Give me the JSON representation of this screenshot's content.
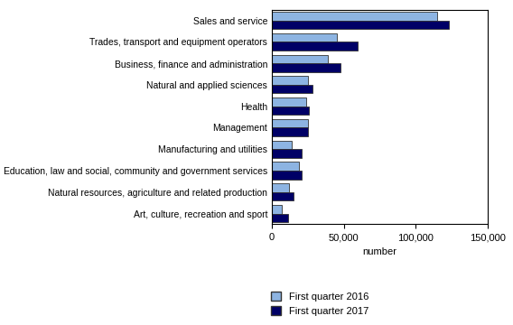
{
  "chart_data": {
    "type": "bar",
    "orientation": "horizontal",
    "categories": [
      "Sales and service",
      "Trades, transport and equipment operators",
      "Business, finance and administration",
      "Natural and applied sciences",
      "Health",
      "Management",
      "Manufacturing and utilities",
      "Education, law and social, community and government services",
      "Natural resources, agriculture and related production",
      "Art, culture, recreation and sport"
    ],
    "series": [
      {
        "name": "First quarter 2016",
        "color": "#8db4e2",
        "values": [
          115000,
          45000,
          39000,
          25000,
          24000,
          25000,
          14000,
          19000,
          12000,
          7000
        ]
      },
      {
        "name": "First quarter 2017",
        "color": "#000066",
        "values": [
          123000,
          60000,
          48000,
          28000,
          26000,
          25000,
          21000,
          21000,
          15000,
          11000
        ]
      }
    ],
    "x_label": "number",
    "xlim": [
      0,
      150000
    ],
    "xticks": [
      0,
      {
        "value": 50000,
        "label": "50,000"
      },
      {
        "value": 100000,
        "label": "100,000"
      },
      {
        "value": 150000,
        "label": "150,000"
      }
    ],
    "grid": false,
    "legend": "lower left"
  }
}
